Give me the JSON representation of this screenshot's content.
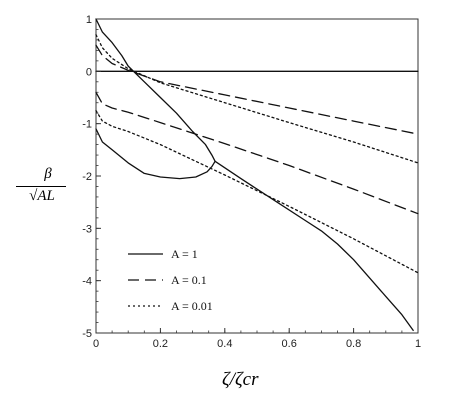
{
  "chart_data": {
    "type": "line",
    "xlabel": "ζ/ζcr",
    "ylabel_num": "β",
    "ylabel_den": "√AL",
    "xlim": [
      0,
      1
    ],
    "ylim": [
      -5,
      1
    ],
    "xticks": [
      "0",
      "0.2",
      "0.4",
      "0.6",
      "0.8",
      "1"
    ],
    "yticks": [
      "1",
      "0",
      "-1",
      "-2",
      "-3",
      "-4",
      "-5"
    ],
    "legend_position": "lower-left",
    "series": [
      {
        "name": "A = 1",
        "style": "solid",
        "color": "#111111",
        "branches": [
          [
            [
              0,
              1.0
            ],
            [
              0.02,
              0.75
            ],
            [
              0.05,
              0.55
            ],
            [
              0.08,
              0.3
            ],
            [
              0.1,
              0.1
            ],
            [
              0.15,
              -0.2
            ],
            [
              0.2,
              -0.5
            ],
            [
              0.25,
              -0.8
            ],
            [
              0.3,
              -1.15
            ],
            [
              0.34,
              -1.4
            ],
            [
              0.36,
              -1.6
            ],
            [
              0.37,
              -1.72
            ]
          ],
          [
            [
              0,
              -1.1
            ],
            [
              0.02,
              -1.35
            ],
            [
              0.05,
              -1.5
            ],
            [
              0.1,
              -1.75
            ],
            [
              0.15,
              -1.95
            ],
            [
              0.2,
              -2.02
            ],
            [
              0.26,
              -2.05
            ],
            [
              0.31,
              -2.02
            ],
            [
              0.345,
              -1.92
            ],
            [
              0.36,
              -1.82
            ],
            [
              0.37,
              -1.72
            ]
          ],
          [
            [
              0.37,
              -1.72
            ],
            [
              0.45,
              -2.05
            ],
            [
              0.55,
              -2.45
            ],
            [
              0.65,
              -2.85
            ],
            [
              0.7,
              -3.05
            ],
            [
              0.75,
              -3.3
            ],
            [
              0.8,
              -3.6
            ],
            [
              0.85,
              -3.95
            ],
            [
              0.9,
              -4.3
            ],
            [
              0.95,
              -4.65
            ],
            [
              0.985,
              -4.95
            ]
          ],
          [
            [
              0,
              0
            ],
            [
              1,
              0
            ]
          ]
        ]
      },
      {
        "name": "A = 0.1",
        "style": "dashed",
        "color": "#111111",
        "branches": [
          [
            [
              0,
              0.5
            ],
            [
              0.02,
              0.3
            ],
            [
              0.05,
              0.15
            ],
            [
              0.1,
              0.02
            ],
            [
              0.2,
              -0.2
            ],
            [
              0.4,
              -0.45
            ],
            [
              0.6,
              -0.7
            ],
            [
              0.8,
              -0.95
            ],
            [
              1,
              -1.2
            ]
          ],
          [
            [
              0,
              -0.4
            ],
            [
              0.02,
              -0.62
            ],
            [
              0.05,
              -0.7
            ],
            [
              0.1,
              -0.78
            ],
            [
              0.2,
              -0.98
            ],
            [
              0.4,
              -1.38
            ],
            [
              0.6,
              -1.8
            ],
            [
              0.8,
              -2.25
            ],
            [
              1,
              -2.72
            ]
          ]
        ]
      },
      {
        "name": "A = 0.01",
        "style": "dotted",
        "color": "#111111",
        "branches": [
          [
            [
              0,
              0.7
            ],
            [
              0.02,
              0.45
            ],
            [
              0.05,
              0.25
            ],
            [
              0.1,
              0.05
            ],
            [
              0.2,
              -0.22
            ],
            [
              0.4,
              -0.6
            ],
            [
              0.6,
              -0.98
            ],
            [
              0.8,
              -1.35
            ],
            [
              1,
              -1.75
            ]
          ],
          [
            [
              0,
              -0.75
            ],
            [
              0.02,
              -0.95
            ],
            [
              0.05,
              -1.05
            ],
            [
              0.1,
              -1.15
            ],
            [
              0.2,
              -1.4
            ],
            [
              0.4,
              -1.98
            ],
            [
              0.6,
              -2.58
            ],
            [
              0.8,
              -3.2
            ],
            [
              1,
              -3.85
            ]
          ]
        ]
      }
    ]
  }
}
